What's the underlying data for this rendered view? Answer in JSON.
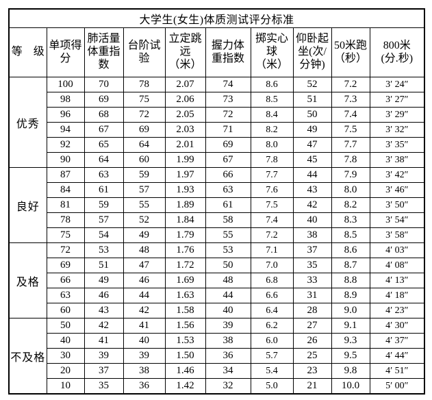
{
  "title": "大学生(女生)体质测试评分标准",
  "table": {
    "columns": [
      {
        "id": "grade",
        "label": "等　级"
      },
      {
        "id": "item-score",
        "label": "单项得\n分"
      },
      {
        "id": "vital-capacity-weight-index",
        "label": "肺活量\n体重指\n数"
      },
      {
        "id": "step-test",
        "label": "台阶试\n验"
      },
      {
        "id": "standing-long-jump",
        "label": "立定跳\n远\n（米）"
      },
      {
        "id": "grip-weight-index",
        "label": "握力体\n重指数"
      },
      {
        "id": "solid-ball-throw",
        "label": "掷实心\n球\n（米）"
      },
      {
        "id": "sit-ups",
        "label": "仰卧起\n坐(次/\n分钟)"
      },
      {
        "id": "run-50m",
        "label": "50米跑\n（秒）"
      },
      {
        "id": "run-800m",
        "label": "800米\n(分.秒)"
      }
    ],
    "groups": [
      {
        "grade": "优秀",
        "rows": [
          [
            "100",
            "70",
            "78",
            "2.07",
            "74",
            "8.6",
            "52",
            "7.2",
            "3′ 24″"
          ],
          [
            "98",
            "69",
            "75",
            "2.06",
            "73",
            "8.5",
            "51",
            "7.3",
            "3′ 27″"
          ],
          [
            "96",
            "68",
            "72",
            "2.05",
            "72",
            "8.4",
            "50",
            "7.4",
            "3′ 29″"
          ],
          [
            "94",
            "67",
            "69",
            "2.03",
            "71",
            "8.2",
            "49",
            "7.5",
            "3′ 32″"
          ],
          [
            "92",
            "65",
            "64",
            "2.01",
            "69",
            "8.0",
            "47",
            "7.7",
            "3′ 35″"
          ],
          [
            "90",
            "64",
            "60",
            "1.99",
            "67",
            "7.8",
            "45",
            "7.8",
            "3′ 38″"
          ]
        ]
      },
      {
        "grade": "良好",
        "rows": [
          [
            "87",
            "63",
            "59",
            "1.97",
            "66",
            "7.7",
            "44",
            "7.9",
            "3′ 42″"
          ],
          [
            "84",
            "61",
            "57",
            "1.93",
            "63",
            "7.6",
            "43",
            "8.0",
            "3′ 46″"
          ],
          [
            "81",
            "59",
            "55",
            "1.89",
            "61",
            "7.5",
            "42",
            "8.2",
            "3′ 50″"
          ],
          [
            "78",
            "57",
            "52",
            "1.84",
            "58",
            "7.4",
            "40",
            "8.3",
            "3′ 54″"
          ],
          [
            "75",
            "54",
            "49",
            "1.79",
            "55",
            "7.2",
            "38",
            "8.5",
            "3′ 58″"
          ]
        ]
      },
      {
        "grade": "及格",
        "rows": [
          [
            "72",
            "53",
            "48",
            "1.76",
            "53",
            "7.1",
            "37",
            "8.6",
            "4′ 03″"
          ],
          [
            "69",
            "51",
            "47",
            "1.72",
            "50",
            "7.0",
            "35",
            "8.7",
            "4′ 08″"
          ],
          [
            "66",
            "49",
            "46",
            "1.69",
            "48",
            "6.8",
            "33",
            "8.8",
            "4′ 13″"
          ],
          [
            "63",
            "46",
            "44",
            "1.63",
            "44",
            "6.6",
            "31",
            "8.9",
            "4′ 18″"
          ],
          [
            "60",
            "43",
            "42",
            "1.58",
            "40",
            "6.4",
            "28",
            "9.0",
            "4′ 23″"
          ]
        ]
      },
      {
        "grade": "不及格",
        "rows": [
          [
            "50",
            "42",
            "41",
            "1.56",
            "39",
            "6.2",
            "27",
            "9.1",
            "4′ 30″"
          ],
          [
            "40",
            "41",
            "40",
            "1.53",
            "38",
            "6.0",
            "26",
            "9.3",
            "4′ 37″"
          ],
          [
            "30",
            "39",
            "39",
            "1.50",
            "36",
            "5.7",
            "25",
            "9.5",
            "4′ 44″"
          ],
          [
            "20",
            "37",
            "38",
            "1.46",
            "34",
            "5.4",
            "23",
            "9.8",
            "4′ 51″"
          ],
          [
            "10",
            "35",
            "36",
            "1.42",
            "32",
            "5.0",
            "21",
            "10.0",
            "5′ 00″"
          ]
        ]
      }
    ]
  },
  "colors": {
    "border": "#000000",
    "background": "#ffffff",
    "text": "#000000"
  }
}
